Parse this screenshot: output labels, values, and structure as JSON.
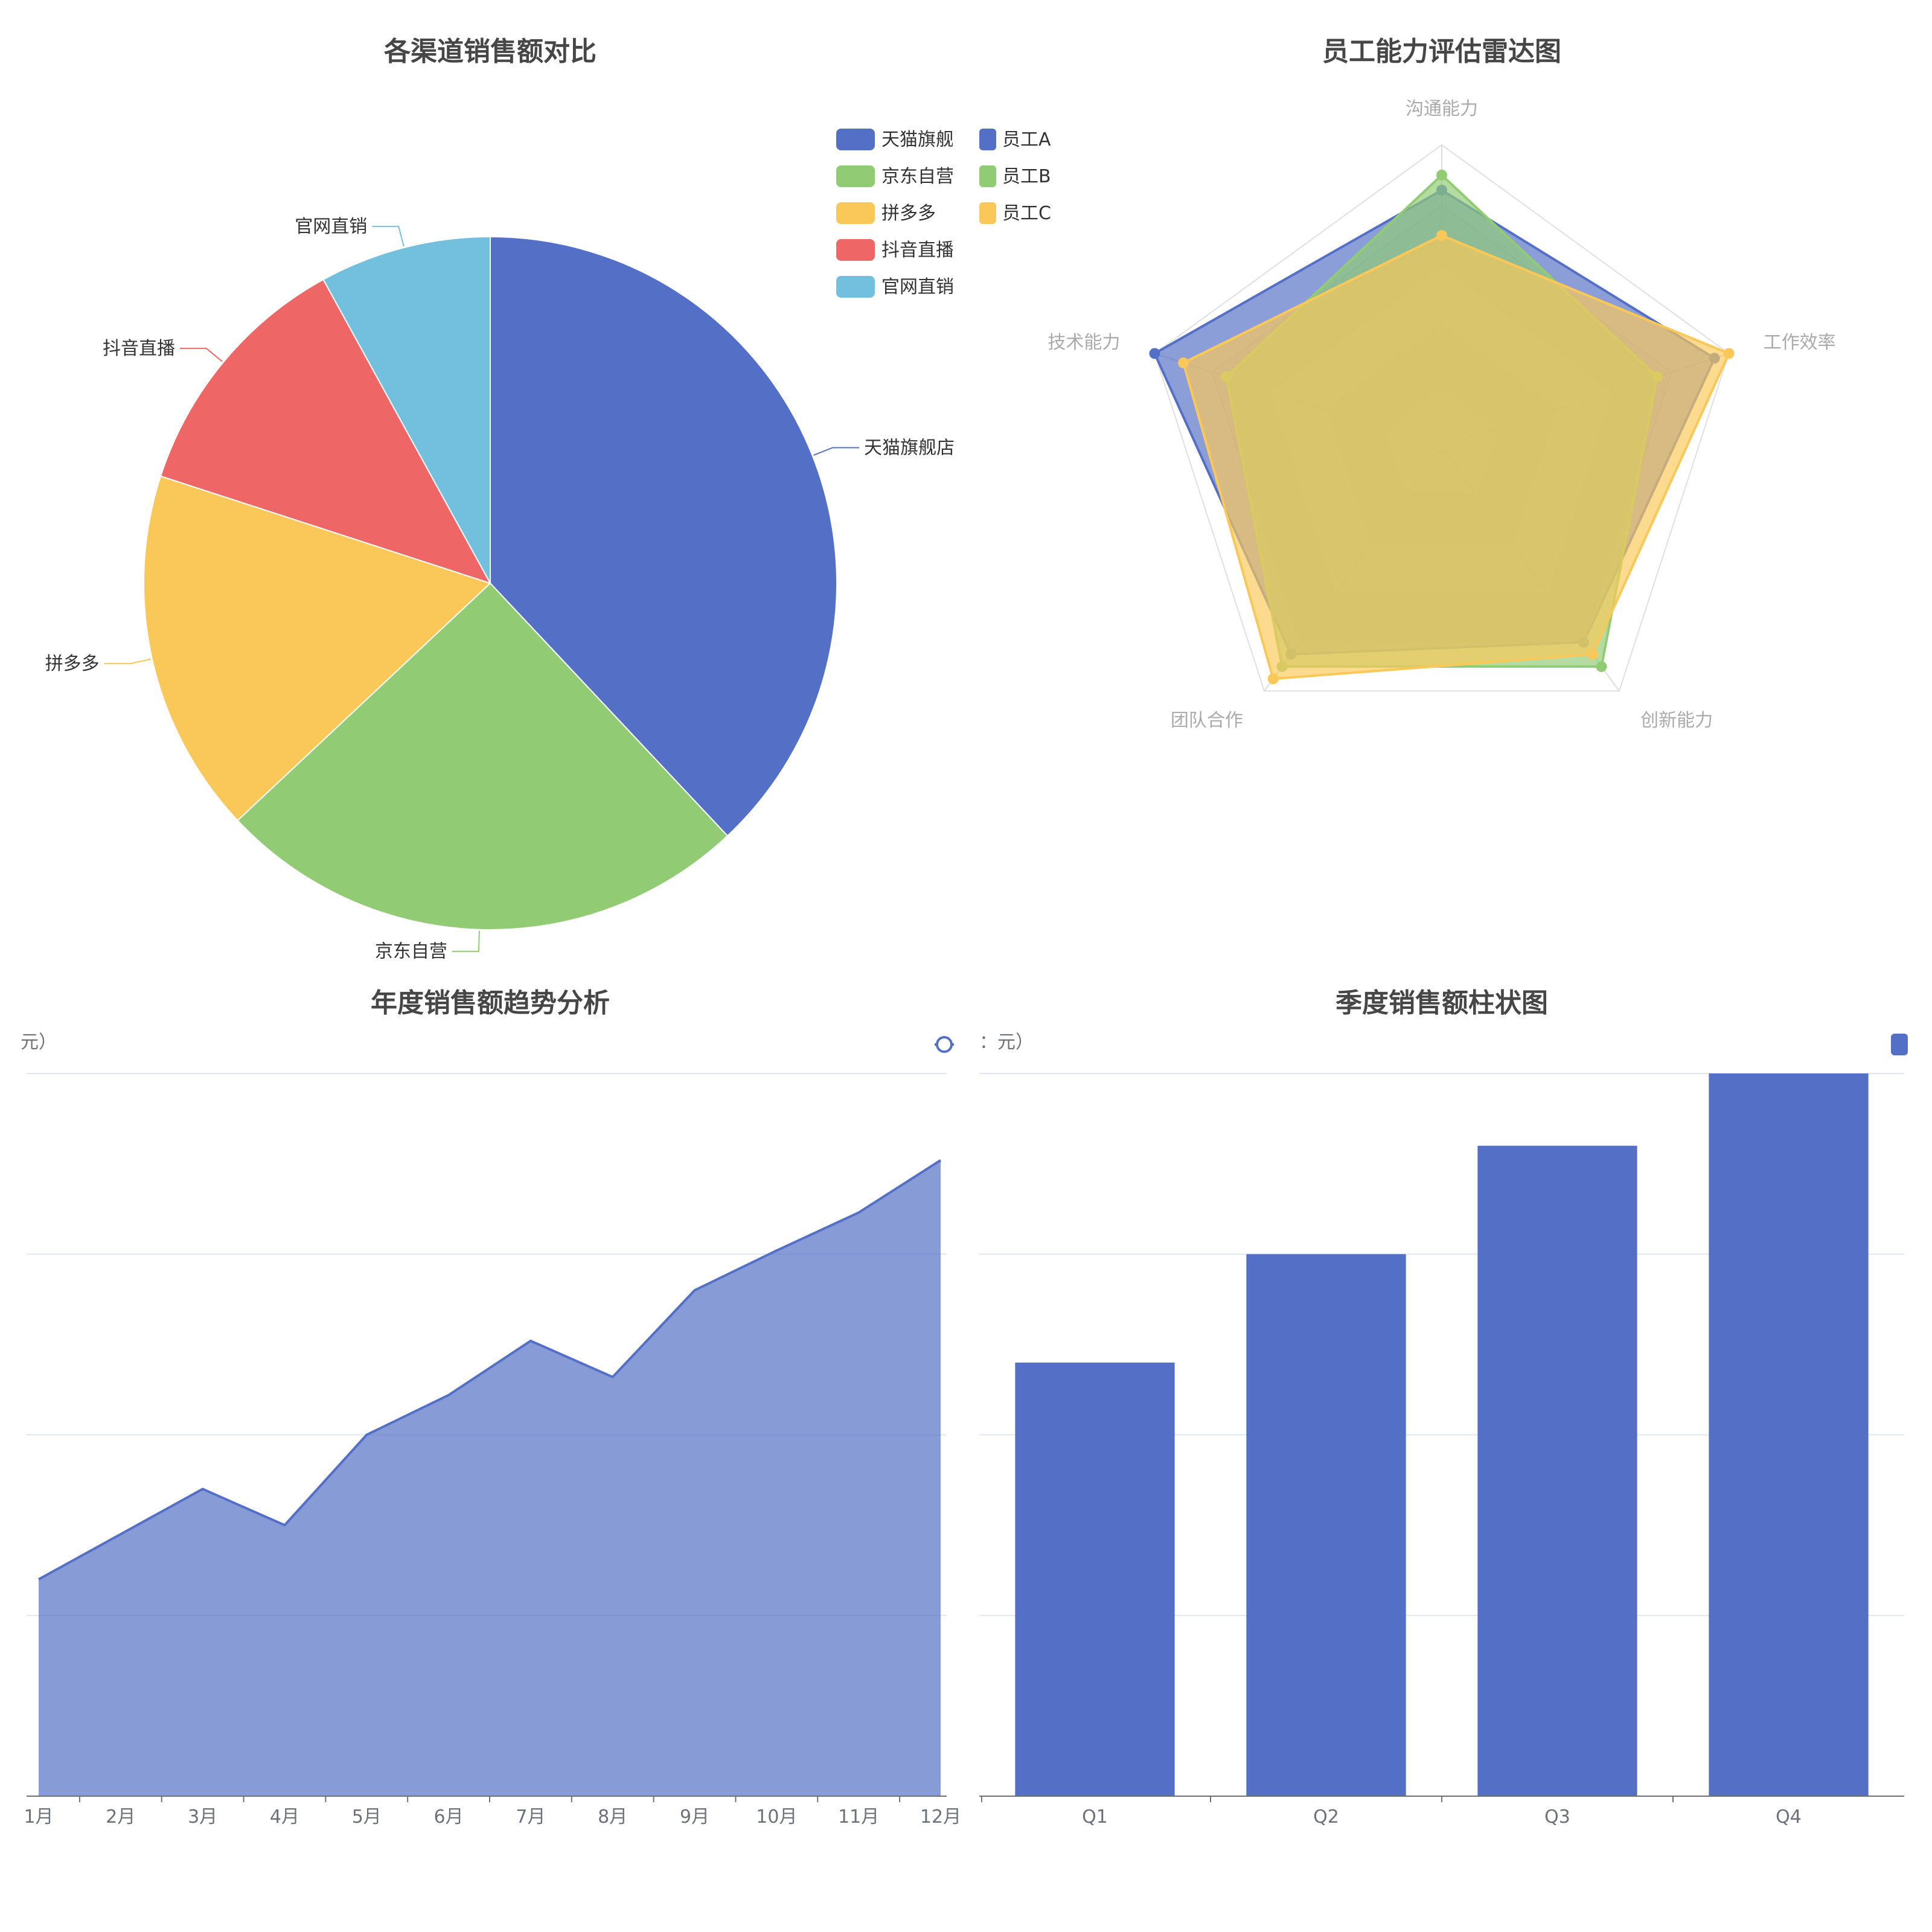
{
  "colors": {
    "blue": "#5470c6",
    "green": "#91cc75",
    "yellow": "#fac858",
    "red": "#ee6666",
    "cyan": "#73c0de",
    "grid": "#e0e6f1",
    "axis": "#6e7079"
  },
  "chart_data": [
    {
      "id": "pie",
      "type": "pie",
      "title": "各渠道销售额对比",
      "legend_position": "top-right",
      "legend_labels": [
        "天猫旗舰",
        "京东自营",
        "拼多多",
        "抖音直播",
        "官网直销"
      ],
      "slices": [
        {
          "name": "天猫旗舰店",
          "value": 38
        },
        {
          "name": "京东自营",
          "value": 25
        },
        {
          "name": "拼多多",
          "value": 17
        },
        {
          "name": "抖音直播",
          "value": 12
        },
        {
          "name": "官网直销",
          "value": 8
        }
      ]
    },
    {
      "id": "radar",
      "type": "radar",
      "title": "员工能力评估雷达图",
      "legend_position": "top-left",
      "indicators": [
        "沟通能力",
        "工作效率",
        "创新能力",
        "团队合作",
        "技术能力"
      ],
      "max": 100,
      "series": [
        {
          "name": "员工A",
          "values": [
            85,
            95,
            80,
            85,
            100
          ]
        },
        {
          "name": "员工B",
          "values": [
            90,
            75,
            90,
            90,
            75
          ]
        },
        {
          "name": "员工C",
          "values": [
            70,
            100,
            85,
            95,
            90
          ]
        }
      ]
    },
    {
      "id": "line",
      "type": "area",
      "title": "年度销售额趋势分析",
      "ylabel_fragment": "元）",
      "categories": [
        "1月",
        "2月",
        "3月",
        "4月",
        "5月",
        "6月",
        "7月",
        "8月",
        "9月",
        "10月",
        "11月",
        "12月"
      ],
      "values": [
        120,
        145,
        170,
        150,
        200,
        222,
        252,
        232,
        280,
        302,
        323,
        352
      ],
      "ylim": [
        0,
        400
      ],
      "grid": true
    },
    {
      "id": "bar",
      "type": "bar",
      "title": "季度销售额柱状图",
      "ylabel_fragment": "：元）",
      "categories": [
        "Q1",
        "Q2",
        "Q3",
        "Q4"
      ],
      "values": [
        240,
        300,
        360,
        400
      ],
      "ylim": [
        0,
        400
      ],
      "grid": true
    }
  ]
}
